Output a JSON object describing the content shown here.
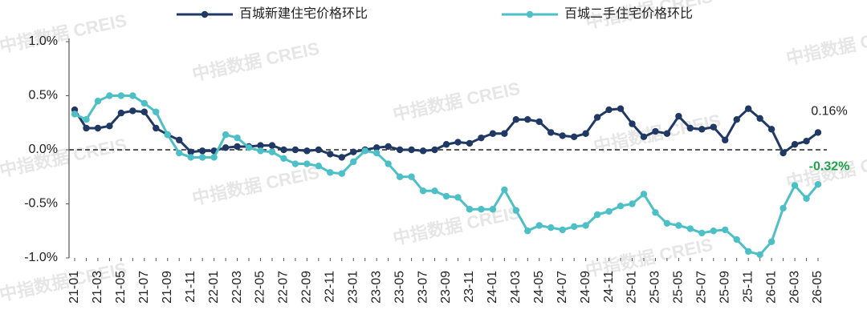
{
  "chart_data": {
    "type": "line",
    "watermark": "中指数据 CREIS",
    "categories": [
      "21-01",
      null,
      "21-03",
      null,
      "21-05",
      null,
      "21-07",
      null,
      "21-09",
      null,
      "21-11",
      null,
      "22-01",
      null,
      "22-03",
      null,
      "22-05",
      null,
      "22-07",
      null,
      "22-09",
      null,
      "22-11",
      null,
      "23-01",
      null,
      "23-03",
      null,
      "23-05",
      null,
      "23-07",
      null,
      "23-09",
      null,
      "23-11",
      null,
      "24-01",
      null,
      "24-03",
      null,
      "24-05",
      null,
      "24-07",
      null,
      "24-09",
      null,
      "24-11",
      null,
      "25-01",
      null,
      "25-03",
      null,
      "25-05",
      null,
      "25-07",
      null,
      "25-09",
      null,
      "25-11",
      null,
      "26-01",
      null,
      "26-03",
      null,
      "26-05"
    ],
    "series": [
      {
        "name": "百城新建住宅价格环比",
        "color": "#203864",
        "values": [
          0.37,
          0.2,
          0.2,
          0.22,
          0.34,
          0.36,
          0.35,
          0.2,
          0.14,
          0.09,
          -0.02,
          -0.01,
          -0.01,
          0.02,
          0.03,
          0.03,
          0.04,
          0.04,
          0.0,
          0.0,
          -0.01,
          0.0,
          -0.04,
          -0.07,
          -0.02,
          0.0,
          0.02,
          0.03,
          0.0,
          0.0,
          -0.01,
          0.0,
          0.05,
          0.07,
          0.06,
          0.11,
          0.15,
          0.15,
          0.28,
          0.28,
          0.26,
          0.16,
          0.13,
          0.12,
          0.15,
          0.3,
          0.37,
          0.38,
          0.24,
          0.12,
          0.17,
          0.15,
          0.31,
          0.2,
          0.19,
          0.21,
          0.09,
          0.28,
          0.38,
          0.29,
          0.19,
          -0.03,
          0.05,
          0.08,
          0.16
        ],
        "value_labels": [
          null,
          null,
          null,
          null,
          null,
          null,
          null,
          null,
          null,
          null,
          null,
          null,
          null,
          null,
          null,
          null,
          null,
          null,
          null,
          null,
          null,
          null,
          null,
          null,
          null,
          null,
          null,
          null,
          null,
          null,
          null,
          null,
          null,
          null,
          null,
          null,
          null,
          null,
          null,
          null,
          null,
          null,
          null,
          null,
          null,
          null,
          null,
          null,
          null,
          null,
          null,
          null,
          null,
          null,
          null,
          null,
          null,
          null,
          null,
          null,
          null,
          null,
          null,
          null,
          "0.16%"
        ],
        "label_color": "#222222"
      },
      {
        "name": "百城二手住宅价格环比",
        "color": "#4dbfc6",
        "values": [
          0.33,
          0.28,
          0.45,
          0.5,
          0.5,
          0.5,
          0.43,
          0.35,
          0.14,
          -0.03,
          -0.07,
          -0.07,
          -0.07,
          0.14,
          0.11,
          0.02,
          -0.01,
          -0.02,
          -0.08,
          -0.13,
          -0.13,
          -0.15,
          -0.21,
          -0.22,
          -0.11,
          -0.01,
          -0.03,
          -0.13,
          -0.25,
          -0.25,
          -0.38,
          -0.38,
          -0.43,
          -0.44,
          -0.55,
          -0.55,
          -0.55,
          -0.37,
          -0.56,
          -0.75,
          -0.7,
          -0.72,
          -0.74,
          -0.71,
          -0.7,
          -0.6,
          -0.57,
          -0.52,
          -0.5,
          -0.41,
          -0.58,
          -0.68,
          -0.7,
          -0.73,
          -0.77,
          -0.75,
          -0.74,
          -0.83,
          -0.94,
          -0.97,
          -0.85,
          -0.54,
          -0.33,
          -0.45,
          -0.32
        ],
        "value_labels": [
          null,
          null,
          null,
          null,
          null,
          null,
          null,
          null,
          null,
          null,
          null,
          null,
          null,
          null,
          null,
          null,
          null,
          null,
          null,
          null,
          null,
          null,
          null,
          null,
          null,
          null,
          null,
          null,
          null,
          null,
          null,
          null,
          null,
          null,
          null,
          null,
          null,
          null,
          null,
          null,
          null,
          null,
          null,
          null,
          null,
          null,
          null,
          null,
          null,
          null,
          null,
          null,
          null,
          null,
          null,
          null,
          null,
          null,
          null,
          null,
          null,
          null,
          null,
          null,
          "-0.32%"
        ],
        "label_color": "#1fa34a"
      }
    ],
    "ylim": [
      -1,
      1
    ],
    "yticks": [
      {
        "value": -1,
        "label": "-1.0%"
      },
      {
        "value": -0.5,
        "label": "-0.5%"
      },
      {
        "value": 0,
        "label": "0.0%"
      },
      {
        "value": 0.5,
        "label": "0.5%"
      },
      {
        "value": 1,
        "label": "1.0%"
      }
    ],
    "legend": "top"
  }
}
